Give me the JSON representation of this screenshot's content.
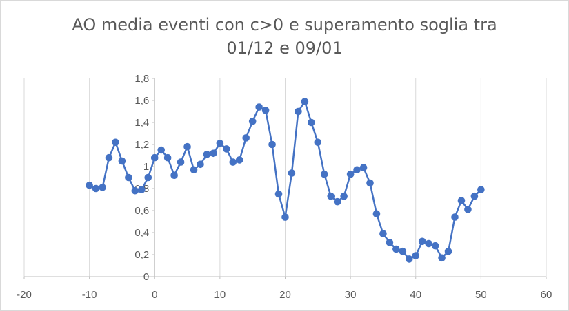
{
  "chart_data": {
    "type": "scatter",
    "title_line1": "AO media eventi con c>0 e superamento  soglia tra",
    "title_line2": "01/12 e 09/01",
    "xlabel": "",
    "ylabel": "",
    "xlim": [
      -20,
      60
    ],
    "ylim": [
      0,
      1.8
    ],
    "xticks": [
      -20,
      -10,
      0,
      10,
      20,
      30,
      40,
      50,
      60
    ],
    "xtick_labels": [
      "-20",
      "-10",
      "0",
      "10",
      "20",
      "30",
      "40",
      "50",
      "60"
    ],
    "yticks": [
      0,
      0.2,
      0.4,
      0.6,
      0.8,
      1,
      1.2,
      1.4,
      1.6,
      1.8
    ],
    "ytick_labels": [
      "0",
      "0,2",
      "0,4",
      "0,6",
      "0,8",
      "1",
      "1,2",
      "1,4",
      "1,6",
      "1,8"
    ],
    "grid": "vertical",
    "series_color": "#4472c4",
    "series": [
      {
        "x": [
          -10,
          -9,
          -8,
          -7,
          -6,
          -5,
          -4,
          -3,
          -2,
          -1,
          0,
          1,
          2,
          3,
          4,
          5,
          6,
          7,
          8,
          9,
          10,
          11,
          12,
          13,
          14,
          15,
          16,
          17,
          18,
          19,
          20,
          21,
          22,
          23,
          24,
          25,
          26,
          27,
          28,
          29,
          30,
          31,
          32,
          33,
          34,
          35,
          36,
          37,
          38,
          39,
          40,
          41,
          42,
          43,
          44,
          45,
          46,
          47,
          48,
          49,
          50
        ],
        "y": [
          0.83,
          0.8,
          0.81,
          1.08,
          1.22,
          1.05,
          0.9,
          0.78,
          0.79,
          0.9,
          1.08,
          1.15,
          1.08,
          0.92,
          1.04,
          1.18,
          0.97,
          1.02,
          1.11,
          1.12,
          1.21,
          1.16,
          1.04,
          1.06,
          1.26,
          1.41,
          1.54,
          1.51,
          1.2,
          0.75,
          0.54,
          0.94,
          1.5,
          1.59,
          1.4,
          1.22,
          0.93,
          0.73,
          0.68,
          0.73,
          0.93,
          0.97,
          0.99,
          0.85,
          0.57,
          0.39,
          0.31,
          0.25,
          0.23,
          0.16,
          0.19,
          0.32,
          0.3,
          0.28,
          0.17,
          0.23,
          0.54,
          0.69,
          0.61,
          0.73,
          0.79
        ]
      }
    ]
  }
}
